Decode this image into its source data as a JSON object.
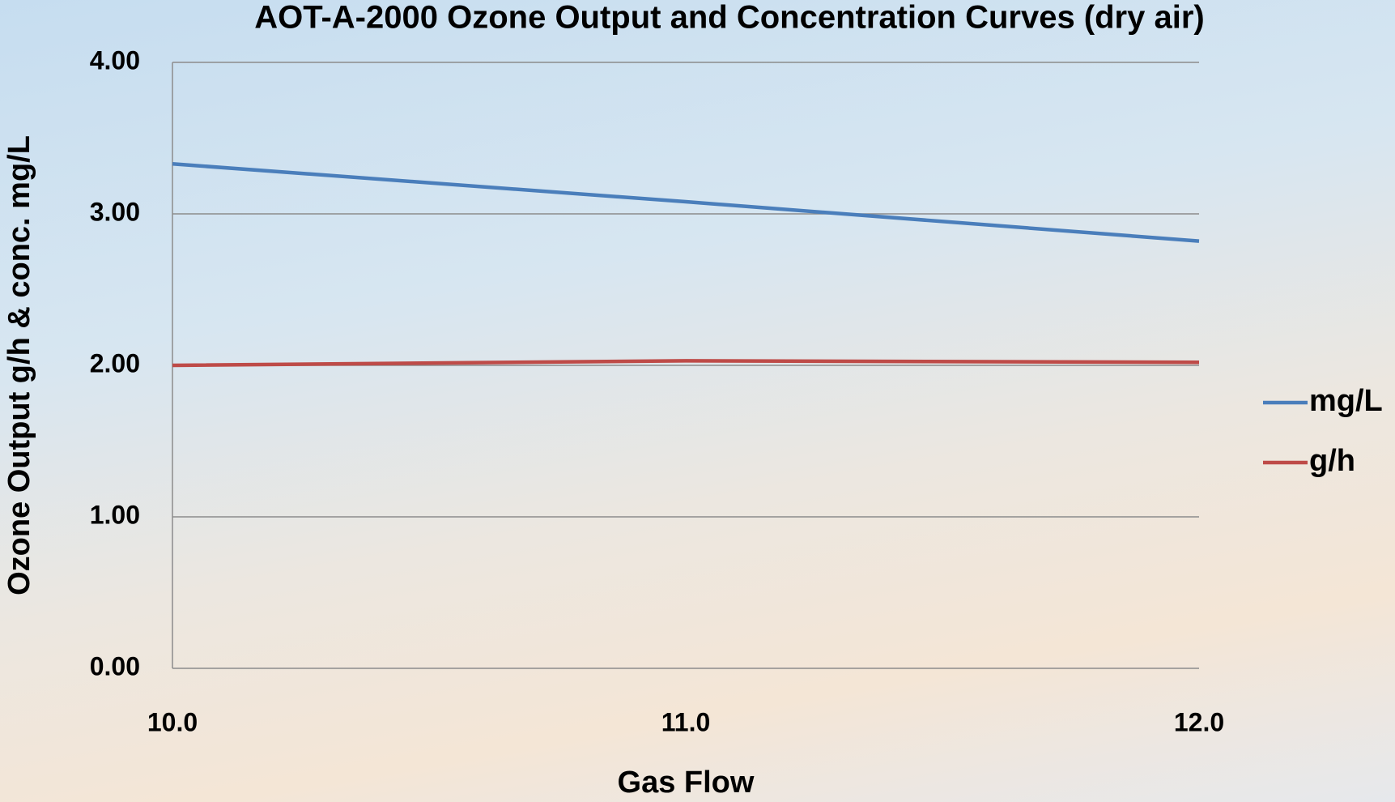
{
  "chart_data": {
    "type": "line",
    "title": "AOT-A-2000 Ozone Output and Concentration Curves (dry air)",
    "x_label": "Gas Flow",
    "y_label": "Ozone Output g/h & conc. mg/L",
    "categories": [
      "10.0",
      "11.0",
      "12.0"
    ],
    "series": [
      {
        "name": "mg/L",
        "color": "#4a7ebb",
        "values": [
          3.33,
          3.08,
          2.82
        ]
      },
      {
        "name": "g/h",
        "color": "#be4b48",
        "values": [
          2.0,
          2.03,
          2.02
        ]
      }
    ],
    "ylim": [
      0,
      4
    ],
    "yticks": [
      {
        "value": 0,
        "label": "0.00"
      },
      {
        "value": 1,
        "label": "1.00"
      },
      {
        "value": 2,
        "label": "2.00"
      },
      {
        "value": 3,
        "label": "3.00"
      },
      {
        "value": 4,
        "label": "4.00"
      }
    ],
    "grid": true,
    "legend": "right"
  }
}
